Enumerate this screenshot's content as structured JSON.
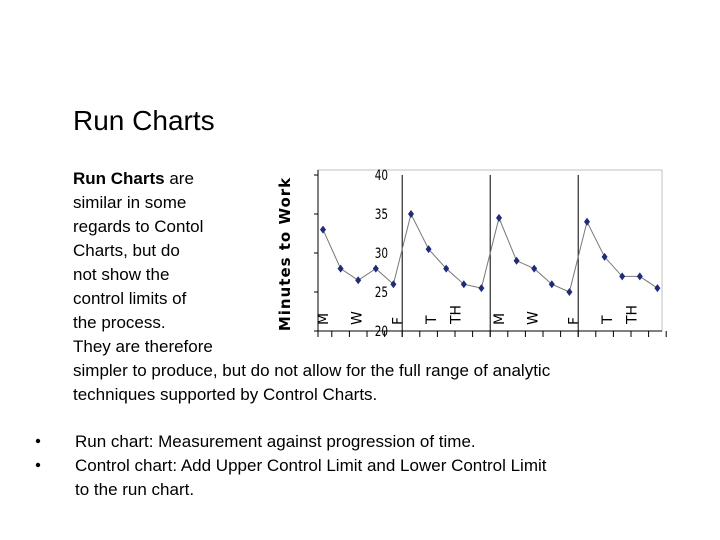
{
  "slide": {
    "title": "Run Charts",
    "intro": {
      "bold": "Run Charts",
      "lines": [
        " are",
        "similar in some",
        "regards to Contol",
        "Charts, but do",
        "not show the",
        "control limits of",
        "the process.",
        "They are therefore",
        "simpler to produce, but do not allow for the full range of analytic",
        "techniques supported by Control Charts."
      ]
    },
    "bullets": [
      [
        "Run chart: Measurement against progression of time."
      ],
      [
        "Control chart: Add Upper Control Limit and Lower Control Limit",
        "to the run chart."
      ]
    ]
  },
  "chart_data": {
    "type": "line",
    "y_label": "Minutes to Work",
    "categories": [
      "M",
      null,
      "W",
      null,
      "F",
      null,
      "T",
      null,
      "TH",
      null,
      "M",
      null,
      "W",
      null,
      "F",
      null,
      "T",
      null,
      "TH",
      null
    ],
    "series": [
      {
        "color": "#1f2a78",
        "values": [
          33,
          28,
          26.5,
          28,
          26,
          35,
          30.5,
          28,
          26,
          25.5,
          34.5,
          29,
          28,
          26,
          25,
          34,
          29.5,
          27,
          27,
          25.5
        ]
      }
    ],
    "ylim": [
      20,
      40
    ],
    "yticks": [
      20,
      25,
      30,
      35,
      40
    ]
  }
}
